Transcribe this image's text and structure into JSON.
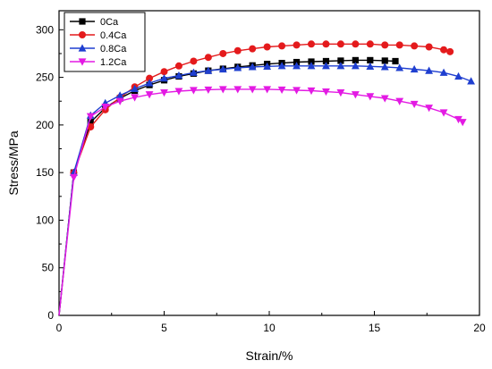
{
  "chart_data": {
    "type": "line",
    "title": "",
    "xlabel": "Strain/%",
    "ylabel": "Stress/MPa",
    "xlim": [
      0,
      20
    ],
    "ylim": [
      0,
      320
    ],
    "xticks": [
      "0",
      "5",
      "10",
      "15",
      "20"
    ],
    "yticks": [
      "0",
      "50",
      "100",
      "150",
      "200",
      "250",
      "300"
    ],
    "grid": false,
    "legend_position": "top-left",
    "series": [
      {
        "name": "0Ca",
        "color": "#000000",
        "marker": "square",
        "x": [
          0,
          0.7,
          1.5,
          2.2,
          2.9,
          3.6,
          4.3,
          5.0,
          5.7,
          6.4,
          7.1,
          7.8,
          8.5,
          9.2,
          9.9,
          10.6,
          11.3,
          12.0,
          12.7,
          13.4,
          14.1,
          14.8,
          15.5,
          16.0
        ],
        "y": [
          0,
          150,
          203,
          218,
          228,
          236,
          242,
          247,
          251,
          254,
          257,
          259,
          261,
          262.5,
          264,
          265,
          266,
          266.5,
          267,
          267.5,
          268,
          268,
          267.5,
          267
        ]
      },
      {
        "name": "0.4Ca",
        "color": "#e41a1c",
        "marker": "circle",
        "x": [
          0,
          0.7,
          1.5,
          2.2,
          2.9,
          3.6,
          4.3,
          5.0,
          5.7,
          6.4,
          7.1,
          7.8,
          8.5,
          9.2,
          9.9,
          10.6,
          11.3,
          12.0,
          12.7,
          13.4,
          14.1,
          14.8,
          15.5,
          16.2,
          16.9,
          17.6,
          18.3,
          18.6
        ],
        "y": [
          0,
          150,
          198,
          216,
          229,
          240,
          249,
          256,
          262,
          267,
          271,
          275,
          278,
          280,
          282,
          283,
          284,
          285,
          285,
          285,
          285,
          285,
          284,
          284,
          283,
          282,
          279,
          277
        ]
      },
      {
        "name": "0.8Ca",
        "color": "#1f3fd0",
        "marker": "triangle-up",
        "x": [
          0,
          0.7,
          1.5,
          2.2,
          2.9,
          3.6,
          4.3,
          5.0,
          5.7,
          6.4,
          7.1,
          7.8,
          8.5,
          9.2,
          9.9,
          10.6,
          11.3,
          12.0,
          12.7,
          13.4,
          14.1,
          14.8,
          15.5,
          16.2,
          16.9,
          17.6,
          18.3,
          19.0,
          19.6
        ],
        "y": [
          0,
          150,
          210,
          223,
          231,
          238,
          244,
          249,
          252,
          255,
          257,
          258.5,
          260,
          261,
          261.5,
          262,
          262,
          262,
          262,
          262,
          262,
          261.5,
          261,
          260,
          258.5,
          257,
          255,
          251,
          246
        ]
      },
      {
        "name": "1.2Ca",
        "color": "#e31ae3",
        "marker": "triangle-down",
        "x": [
          0,
          0.7,
          1.5,
          2.2,
          2.9,
          3.6,
          4.3,
          5.0,
          5.7,
          6.4,
          7.1,
          7.8,
          8.5,
          9.2,
          9.9,
          10.6,
          11.3,
          12.0,
          12.7,
          13.4,
          14.1,
          14.8,
          15.5,
          16.2,
          16.9,
          17.6,
          18.3,
          19.0,
          19.2
        ],
        "y": [
          0,
          145,
          209,
          219,
          225,
          229,
          232,
          234,
          235.5,
          236.5,
          237,
          237.5,
          237.5,
          237.5,
          237.5,
          237,
          236.5,
          236,
          235,
          234,
          232,
          230,
          228,
          225,
          222,
          218,
          213,
          206,
          203
        ]
      }
    ]
  }
}
